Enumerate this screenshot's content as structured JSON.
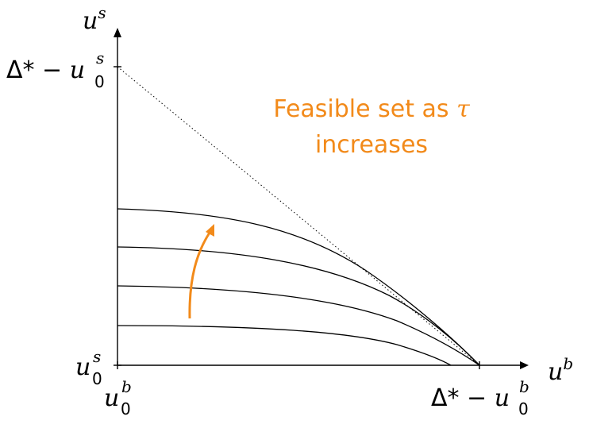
{
  "axes": {
    "x_label": "u",
    "x_label_sup": "b",
    "y_label": "u",
    "y_label_sup": "s"
  },
  "ticks": {
    "y_top": {
      "prefix": "Δ* − ",
      "var": "u",
      "sup": "s",
      "sub": "0"
    },
    "y_origin": {
      "var": "u",
      "sup": "s",
      "sub": "0"
    },
    "x_origin": {
      "var": "u",
      "sup": "b",
      "sub": "0"
    },
    "x_right": {
      "prefix": "Δ* − ",
      "var": "u",
      "sup": "b",
      "sub": "0"
    }
  },
  "annotation": {
    "line1": "Feasible set as ",
    "line1_symbol": "τ",
    "line2": "increases",
    "color": "#f28a1a"
  },
  "curves_count": 4,
  "colors": {
    "accent": "#f28a1a",
    "ink": "#000000",
    "background": "#ffffff"
  }
}
